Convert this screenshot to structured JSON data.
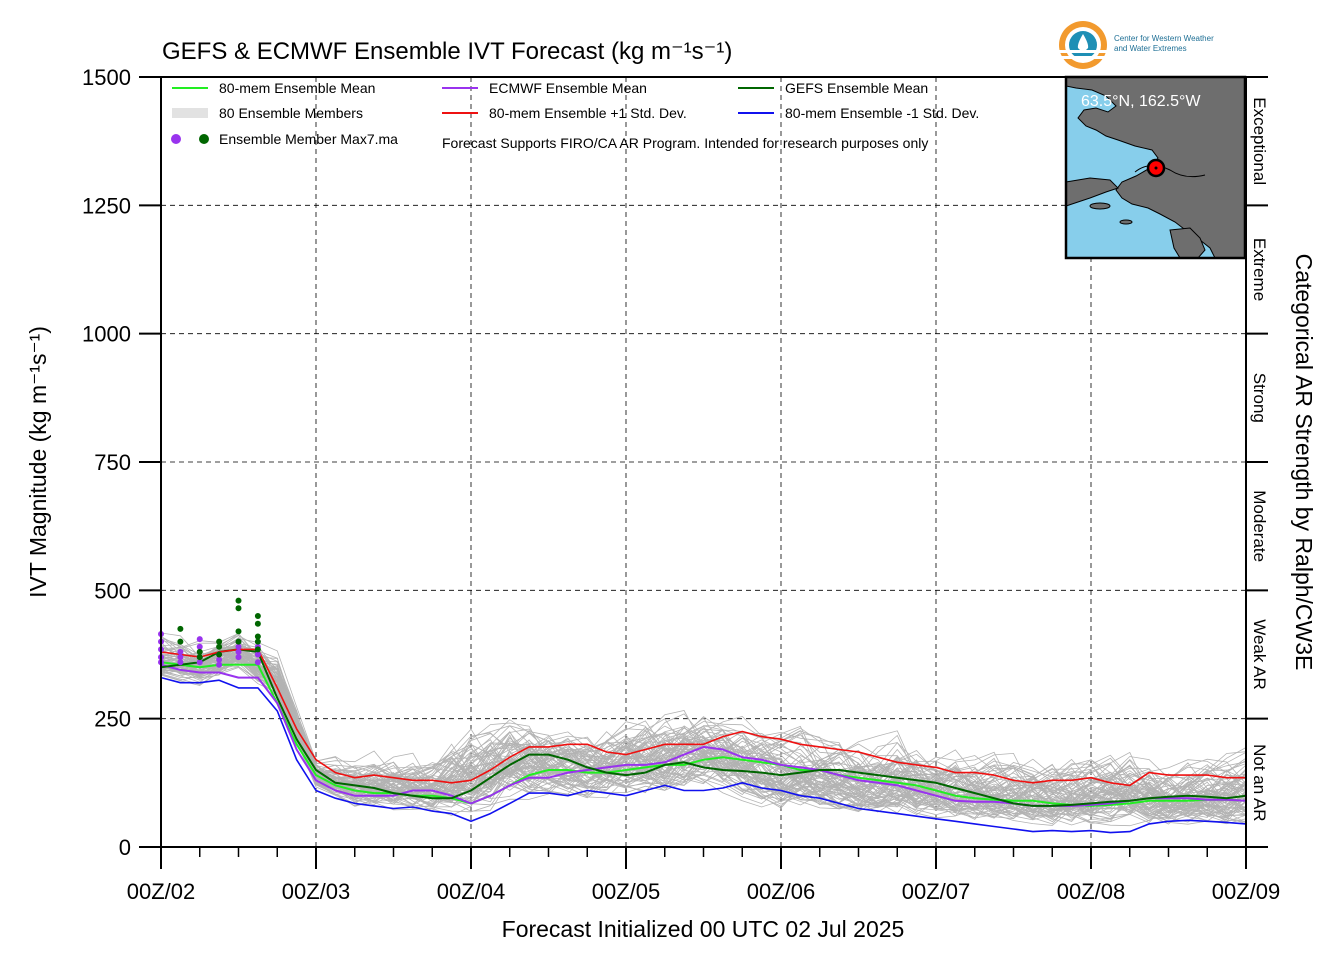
{
  "chart_data": {
    "type": "line",
    "title": "GEFS & ECMWF Ensemble IVT Forecast (kg m⁻¹s⁻¹)",
    "ylabel": "IVT Magnitude (kg m⁻¹s⁻¹)",
    "xlabel": "Forecast Initialized 00 UTC 02 Jul 2025",
    "right_label": "Categorical AR Strength by Ralph/CW3E",
    "logo_text": [
      "Center for Western Weather",
      "and Water Extremes"
    ],
    "note": "Forecast Supports FIRO/CA AR Program. Intended for research purposes only",
    "inset_label": "63.5°N, 162.5°W",
    "ylim": [
      0,
      1500
    ],
    "xlim": [
      0,
      168
    ],
    "grid": true,
    "y_ticks": [
      "0",
      "250",
      "500",
      "750",
      "1000",
      "1250",
      "1500"
    ],
    "x_ticks": [
      "00Z/02",
      "00Z/03",
      "00Z/04",
      "00Z/05",
      "00Z/06",
      "00Z/07",
      "00Z/08",
      "00Z/09"
    ],
    "categories_right": [
      "Not an AR",
      "Weak AR",
      "Moderate",
      "Strong",
      "Extreme",
      "Exceptional"
    ],
    "legend": [
      {
        "label": "80-mem Ensemble Mean",
        "color": "#22ee22",
        "kind": "line"
      },
      {
        "label": "ECMWF Ensemble Mean",
        "color": "#9933ee",
        "kind": "line"
      },
      {
        "label": "GEFS Ensemble Mean",
        "color": "#006600",
        "kind": "line"
      },
      {
        "label": "80 Ensemble Members",
        "color": "#b0b0b0",
        "kind": "members"
      },
      {
        "label": "80-mem Ensemble +1 Std. Dev.",
        "color": "#ee1111",
        "kind": "line"
      },
      {
        "label": "80-mem Ensemble -1 Std. Dev.",
        "color": "#1111ee",
        "kind": "line"
      },
      {
        "label": "Ensemble Member Max7.ma",
        "color": "#9933ee",
        "kind": "dots"
      }
    ],
    "members_envelope": {
      "x": [
        0,
        6,
        12,
        18,
        24,
        30,
        36,
        42,
        48,
        54,
        60,
        66,
        72,
        78,
        84,
        90,
        96,
        102,
        108,
        114,
        120,
        126,
        132,
        138,
        144,
        150,
        156,
        162,
        168
      ],
      "lower": [
        330,
        310,
        340,
        280,
        110,
        70,
        60,
        55,
        40,
        70,
        85,
        80,
        90,
        80,
        100,
        80,
        60,
        55,
        50,
        45,
        40,
        35,
        30,
        30,
        28,
        30,
        28,
        26,
        25
      ],
      "upper": [
        420,
        430,
        450,
        420,
        200,
        210,
        230,
        220,
        330,
        340,
        300,
        290,
        320,
        340,
        330,
        310,
        290,
        280,
        270,
        300,
        260,
        250,
        240,
        230,
        240,
        250,
        230,
        240,
        250
      ]
    },
    "series": [
      {
        "name": "80-mem Ensemble Mean",
        "color": "#22ee22",
        "width": 2,
        "x": [
          0,
          3,
          6,
          9,
          12,
          15,
          18,
          21,
          24,
          27,
          30,
          33,
          36,
          39,
          42,
          45,
          48,
          51,
          54,
          57,
          60,
          63,
          66,
          69,
          72,
          75,
          78,
          81,
          84,
          87,
          90,
          93,
          96,
          99,
          102,
          105,
          108,
          111,
          114,
          117,
          120,
          123,
          126,
          129,
          132,
          135,
          138,
          141,
          144,
          147,
          150,
          153,
          156,
          159,
          162,
          165,
          168
        ],
        "y": [
          360,
          355,
          350,
          355,
          355,
          355,
          280,
          200,
          140,
          120,
          110,
          105,
          105,
          100,
          100,
          95,
          85,
          100,
          120,
          140,
          150,
          150,
          145,
          145,
          150,
          155,
          160,
          160,
          170,
          175,
          170,
          165,
          160,
          150,
          150,
          140,
          135,
          130,
          125,
          120,
          110,
          100,
          95,
          92,
          90,
          90,
          85,
          82,
          80,
          82,
          85,
          90,
          90,
          90,
          92,
          92,
          90
        ]
      },
      {
        "name": "ECMWF Ensemble Mean",
        "color": "#9933ee",
        "width": 2,
        "x": [
          0,
          3,
          6,
          9,
          12,
          15,
          18,
          21,
          24,
          27,
          30,
          33,
          36,
          39,
          42,
          45,
          48,
          51,
          54,
          57,
          60,
          63,
          66,
          69,
          72,
          75,
          78,
          81,
          84,
          87,
          90,
          93,
          96,
          99,
          102,
          105,
          108,
          111,
          114,
          117,
          120,
          123,
          126,
          129,
          132,
          135,
          138,
          141,
          144,
          147,
          150,
          153,
          156,
          159,
          162,
          165,
          168
        ],
        "y": [
          355,
          345,
          340,
          340,
          330,
          330,
          280,
          190,
          130,
          110,
          100,
          100,
          100,
          110,
          110,
          100,
          85,
          100,
          120,
          135,
          135,
          145,
          150,
          155,
          160,
          160,
          165,
          180,
          195,
          190,
          175,
          170,
          160,
          155,
          150,
          140,
          130,
          125,
          120,
          110,
          100,
          90,
          88,
          88,
          85,
          80,
          80,
          80,
          82,
          85,
          90,
          95,
          95,
          95,
          92,
          92,
          90
        ]
      },
      {
        "name": "GEFS Ensemble Mean",
        "color": "#006600",
        "width": 2,
        "x": [
          0,
          3,
          6,
          9,
          12,
          15,
          18,
          21,
          24,
          27,
          30,
          33,
          36,
          39,
          42,
          45,
          48,
          51,
          54,
          57,
          60,
          63,
          66,
          69,
          72,
          75,
          78,
          81,
          84,
          87,
          90,
          93,
          96,
          99,
          102,
          105,
          108,
          111,
          114,
          117,
          120,
          123,
          126,
          129,
          132,
          135,
          138,
          141,
          144,
          147,
          150,
          153,
          156,
          159,
          162,
          165,
          168
        ],
        "y": [
          350,
          355,
          360,
          380,
          385,
          380,
          290,
          210,
          150,
          125,
          120,
          115,
          105,
          100,
          95,
          95,
          110,
          135,
          160,
          180,
          180,
          170,
          155,
          145,
          140,
          145,
          160,
          165,
          155,
          150,
          148,
          145,
          140,
          145,
          150,
          150,
          145,
          140,
          135,
          130,
          125,
          115,
          105,
          95,
          85,
          80,
          80,
          82,
          85,
          88,
          90,
          95,
          98,
          100,
          98,
          95,
          100
        ]
      },
      {
        "name": "80-mem Ensemble +1 Std. Dev.",
        "color": "#ee1111",
        "width": 1.6,
        "x": [
          0,
          3,
          6,
          9,
          12,
          15,
          18,
          21,
          24,
          27,
          30,
          33,
          36,
          39,
          42,
          45,
          48,
          51,
          54,
          57,
          60,
          63,
          66,
          69,
          72,
          75,
          78,
          81,
          84,
          87,
          90,
          93,
          96,
          99,
          102,
          105,
          108,
          111,
          114,
          117,
          120,
          123,
          126,
          129,
          132,
          135,
          138,
          141,
          144,
          147,
          150,
          153,
          156,
          159,
          162,
          165,
          168
        ],
        "y": [
          380,
          375,
          370,
          380,
          385,
          385,
          310,
          230,
          170,
          145,
          135,
          140,
          135,
          130,
          130,
          125,
          130,
          150,
          175,
          195,
          195,
          200,
          200,
          185,
          180,
          190,
          200,
          200,
          200,
          215,
          225,
          215,
          210,
          200,
          195,
          190,
          185,
          175,
          165,
          160,
          155,
          145,
          145,
          140,
          130,
          125,
          130,
          130,
          135,
          125,
          120,
          145,
          140,
          140,
          140,
          135,
          135
        ]
      },
      {
        "name": "80-mem Ensemble -1 Std. Dev.",
        "color": "#1111ee",
        "width": 1.6,
        "x": [
          0,
          3,
          6,
          9,
          12,
          15,
          18,
          21,
          24,
          27,
          30,
          33,
          36,
          39,
          42,
          45,
          48,
          51,
          54,
          57,
          60,
          63,
          66,
          69,
          72,
          75,
          78,
          81,
          84,
          87,
          90,
          93,
          96,
          99,
          102,
          105,
          108,
          111,
          114,
          117,
          120,
          123,
          126,
          129,
          132,
          135,
          138,
          141,
          144,
          147,
          150,
          153,
          156,
          159,
          162,
          165,
          168
        ],
        "y": [
          330,
          320,
          320,
          325,
          310,
          310,
          265,
          170,
          110,
          95,
          85,
          80,
          75,
          78,
          70,
          65,
          50,
          65,
          85,
          105,
          105,
          100,
          110,
          105,
          100,
          110,
          120,
          110,
          110,
          115,
          125,
          115,
          110,
          100,
          95,
          85,
          75,
          70,
          65,
          60,
          55,
          50,
          45,
          40,
          35,
          30,
          32,
          30,
          32,
          28,
          30,
          45,
          50,
          52,
          50,
          48,
          45
        ]
      }
    ],
    "max_dots": {
      "purple_color": "#9933ee",
      "green_color": "#006600",
      "purple": [
        [
          0,
          415
        ],
        [
          0,
          400
        ],
        [
          0,
          385
        ],
        [
          0,
          370
        ],
        [
          0,
          360
        ],
        [
          3,
          380
        ],
        [
          3,
          370
        ],
        [
          3,
          360
        ],
        [
          6,
          405
        ],
        [
          6,
          390
        ],
        [
          6,
          370
        ],
        [
          6,
          360
        ],
        [
          9,
          375
        ],
        [
          9,
          365
        ],
        [
          9,
          355
        ],
        [
          12,
          400
        ],
        [
          12,
          390
        ],
        [
          12,
          380
        ],
        [
          12,
          370
        ],
        [
          15,
          390
        ],
        [
          15,
          375
        ],
        [
          15,
          360
        ]
      ],
      "green": [
        [
          3,
          425
        ],
        [
          3,
          400
        ],
        [
          6,
          380
        ],
        [
          6,
          370
        ],
        [
          9,
          400
        ],
        [
          9,
          390
        ],
        [
          9,
          375
        ],
        [
          12,
          480
        ],
        [
          12,
          465
        ],
        [
          12,
          420
        ],
        [
          12,
          400
        ],
        [
          15,
          450
        ],
        [
          15,
          435
        ],
        [
          15,
          410
        ],
        [
          15,
          400
        ],
        [
          15,
          385
        ]
      ]
    }
  }
}
